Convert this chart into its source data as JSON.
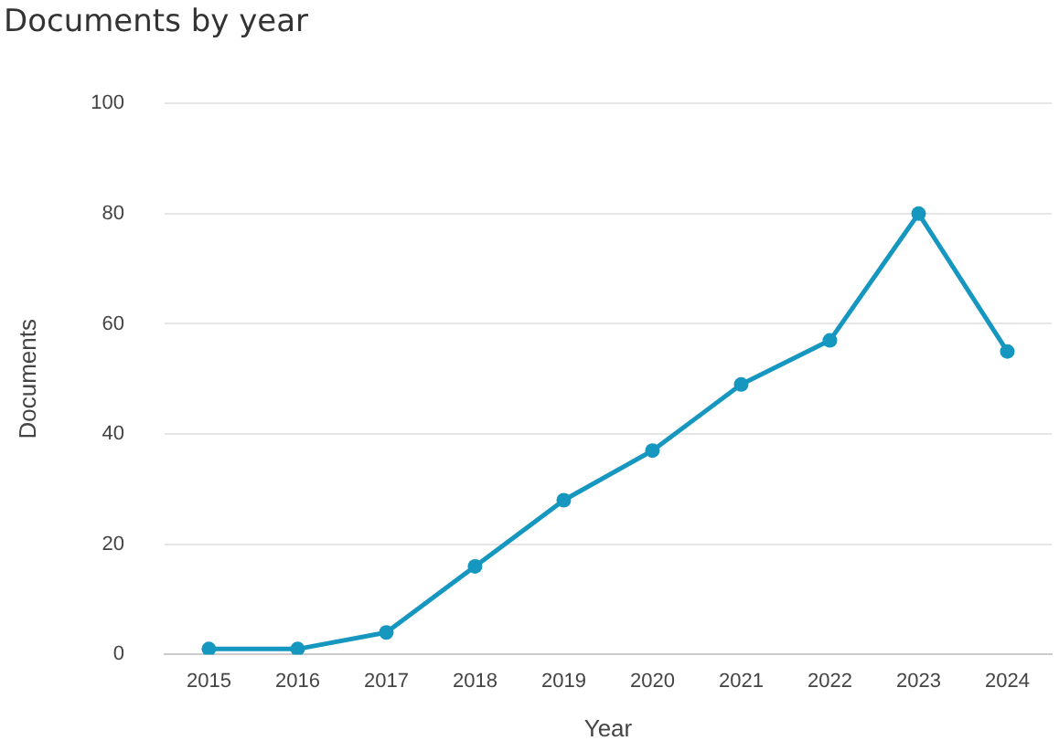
{
  "chart_data": {
    "type": "line",
    "title": "Documents by year",
    "xlabel": "Year",
    "ylabel": "Documents",
    "categories": [
      "2015",
      "2016",
      "2017",
      "2018",
      "2019",
      "2020",
      "2021",
      "2022",
      "2023",
      "2024"
    ],
    "series": [
      {
        "color": "#1597c0",
        "values": [
          1,
          1,
          4,
          16,
          28,
          37,
          49,
          57,
          80,
          55
        ]
      }
    ],
    "ylim": [
      0,
      100
    ],
    "yticks": [
      0,
      20,
      40,
      60,
      80,
      100
    ],
    "grid": "y",
    "marker": "circle",
    "line_style": "solid",
    "legend": false
  }
}
